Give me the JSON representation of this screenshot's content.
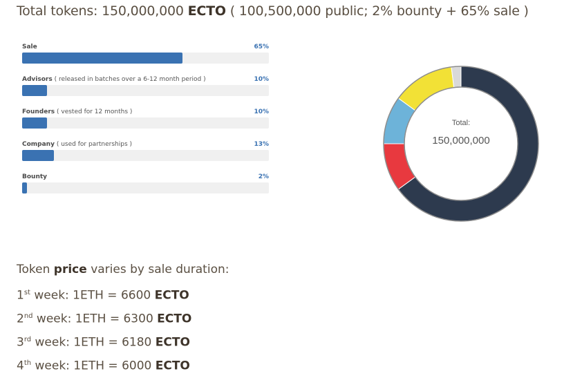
{
  "header": {
    "prefix": "Total tokens: 150,000,000",
    "token": "ECTO",
    "suffix": "( 100,500,000 public; 2% bounty + 65% sale )"
  },
  "allocation": {
    "bar_color": "#3a72b2",
    "track_color": "#f0f0f0",
    "rows": [
      {
        "name": "Sale",
        "note": "",
        "percent": "65%",
        "value": 65
      },
      {
        "name": "Advisors",
        "note": "( released in batches over a 6-12 month period )",
        "percent": "10%",
        "value": 10
      },
      {
        "name": "Founders",
        "note": "( vested for 12 months )",
        "percent": "10%",
        "value": 10
      },
      {
        "name": "Company",
        "note": "( used for partnerships )",
        "percent": "13%",
        "value": 13
      },
      {
        "name": "Bounty",
        "note": "",
        "percent": "2%",
        "value": 2
      }
    ]
  },
  "chart_data": {
    "type": "pie",
    "variant": "donut",
    "center_label": "Total:",
    "center_value": "150,000,000",
    "slices": [
      {
        "value": 65,
        "color": "#2d3a4e"
      },
      {
        "value": 10,
        "color": "#e8393f"
      },
      {
        "value": 10,
        "color": "#6db3d9"
      },
      {
        "value": 13,
        "color": "#f2e136"
      },
      {
        "value": 2,
        "color": "#d9d9d9"
      }
    ]
  },
  "pricing": {
    "intro_prefix": "Token",
    "intro_bold": "price",
    "intro_suffix": "varies by sale duration:",
    "token": "ECTO",
    "weeks": [
      {
        "num": "1",
        "sup": "st",
        "label": "week: 1ETH = 6600"
      },
      {
        "num": "2",
        "sup": "nd",
        "label": "week: 1ETH = 6300"
      },
      {
        "num": "3",
        "sup": "rd",
        "label": "week: 1ETH = 6180"
      },
      {
        "num": "4",
        "sup": "th",
        "label": "week: 1ETH = 6000"
      }
    ]
  }
}
